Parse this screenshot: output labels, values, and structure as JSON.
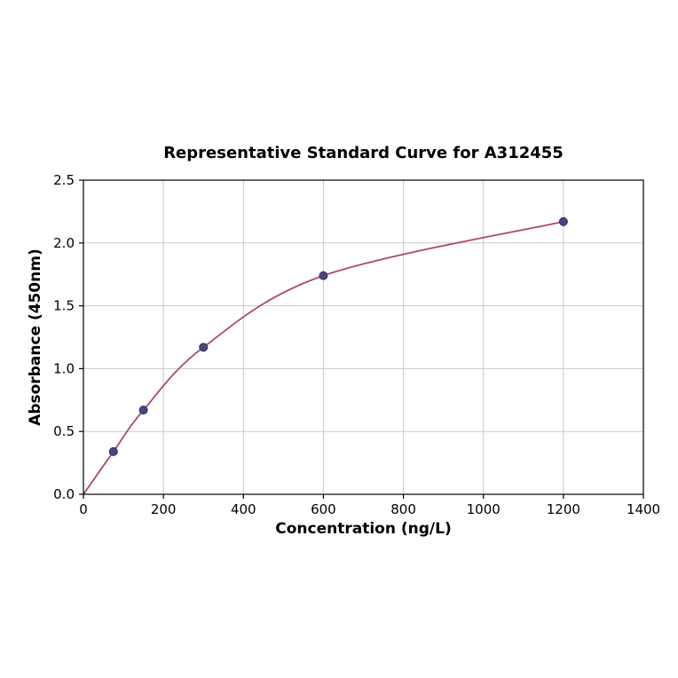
{
  "chart_data": {
    "type": "scatter",
    "title": "Representative Standard Curve for A312455",
    "xlabel": "Concentration (ng/L)",
    "ylabel": "Absorbance (450nm)",
    "xlim": [
      0,
      1400
    ],
    "ylim": [
      0,
      2.5
    ],
    "xticks": [
      0,
      200,
      400,
      600,
      800,
      1000,
      1200,
      1400
    ],
    "xtick_labels": [
      "0",
      "200",
      "400",
      "600",
      "800",
      "1000",
      "1200",
      "1400"
    ],
    "yticks": [
      0.0,
      0.5,
      1.0,
      1.5,
      2.0,
      2.5
    ],
    "ytick_labels": [
      "0.0",
      "0.5",
      "1.0",
      "1.5",
      "2.0",
      "2.5"
    ],
    "grid": true,
    "legend_position": "none",
    "points": [
      {
        "x": 75,
        "y": 0.34
      },
      {
        "x": 150,
        "y": 0.67
      },
      {
        "x": 300,
        "y": 1.17
      },
      {
        "x": 600,
        "y": 1.74
      },
      {
        "x": 1200,
        "y": 2.17
      }
    ],
    "fit_curve": [
      {
        "x": 0,
        "y": 0.0
      },
      {
        "x": 75,
        "y": 0.34
      },
      {
        "x": 150,
        "y": 0.67
      },
      {
        "x": 300,
        "y": 1.17
      },
      {
        "x": 600,
        "y": 1.74
      },
      {
        "x": 1200,
        "y": 2.17
      }
    ],
    "colors": {
      "curve": "#b0486b",
      "marker_fill": "#45477e",
      "marker_edge": "#30325c",
      "grid": "#c9c9c9",
      "axis": "#000000",
      "background": "#ffffff"
    }
  }
}
